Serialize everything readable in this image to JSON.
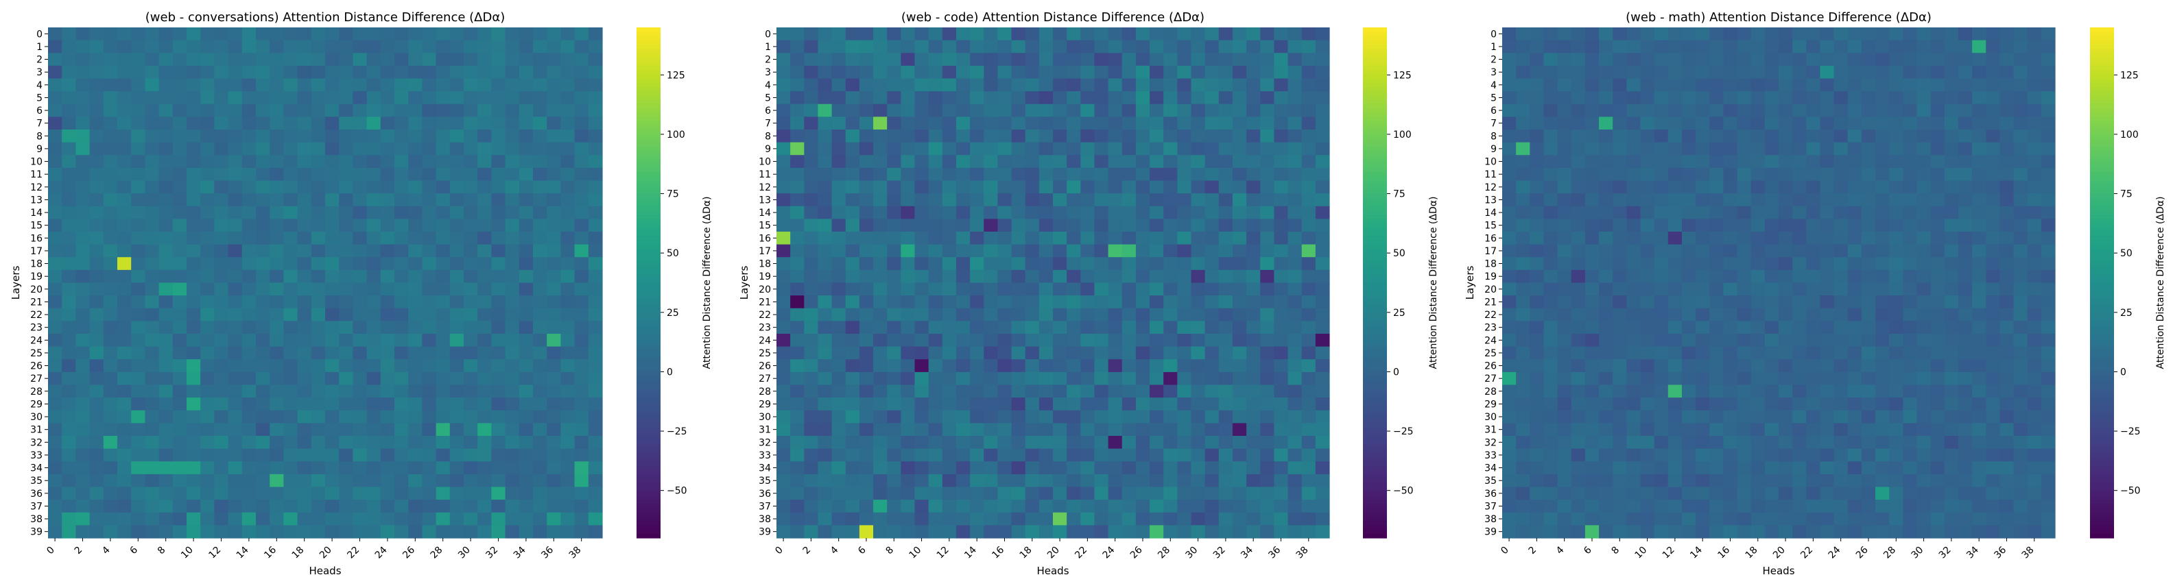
{
  "chart_data": [
    {
      "type": "heatmap",
      "title": "(web - conversations) Attention Distance Difference (ΔDα)",
      "xlabel": "Heads",
      "ylabel": "Layers",
      "rows": 40,
      "cols": 40,
      "x_tick_labels": [
        "0",
        "2",
        "4",
        "6",
        "8",
        "10",
        "12",
        "14",
        "16",
        "18",
        "20",
        "22",
        "24",
        "26",
        "28",
        "30",
        "32",
        "34",
        "36",
        "38"
      ],
      "y_tick_labels": [
        "0",
        "1",
        "2",
        "3",
        "4",
        "5",
        "6",
        "7",
        "8",
        "9",
        "10",
        "11",
        "12",
        "13",
        "14",
        "15",
        "16",
        "17",
        "18",
        "19",
        "20",
        "21",
        "22",
        "23",
        "24",
        "25",
        "26",
        "27",
        "28",
        "29",
        "30",
        "31",
        "32",
        "33",
        "34",
        "35",
        "36",
        "37",
        "38",
        "39"
      ],
      "colorbar": {
        "label": "Attention Distance Difference (ΔDα)",
        "ticks": [
          "125",
          "100",
          "75",
          "50",
          "25",
          "0",
          "−25",
          "−50"
        ],
        "range": [
          -70,
          145
        ],
        "colormap": "viridis"
      },
      "base_value": 10,
      "variation": 12,
      "notable_cells": [
        {
          "row": 18,
          "col": 5,
          "value": 128
        },
        {
          "row": 38,
          "col": 1,
          "value": 48
        },
        {
          "row": 38,
          "col": 2,
          "value": 52
        },
        {
          "row": 38,
          "col": 10,
          "value": 45
        },
        {
          "row": 38,
          "col": 14,
          "value": 48
        },
        {
          "row": 38,
          "col": 17,
          "value": 46
        },
        {
          "row": 38,
          "col": 28,
          "value": 45
        },
        {
          "row": 38,
          "col": 32,
          "value": 44
        },
        {
          "row": 38,
          "col": 36,
          "value": 46
        },
        {
          "row": 38,
          "col": 39,
          "value": 42
        },
        {
          "row": 39,
          "col": 1,
          "value": 48
        },
        {
          "row": 39,
          "col": 10,
          "value": 42
        },
        {
          "row": 39,
          "col": 32,
          "value": 46
        },
        {
          "row": 34,
          "col": 6,
          "value": 52
        },
        {
          "row": 34,
          "col": 7,
          "value": 52
        },
        {
          "row": 34,
          "col": 8,
          "value": 52
        },
        {
          "row": 34,
          "col": 9,
          "value": 52
        },
        {
          "row": 34,
          "col": 10,
          "value": 52
        },
        {
          "row": 34,
          "col": 38,
          "value": 62
        },
        {
          "row": 35,
          "col": 16,
          "value": 70
        },
        {
          "row": 35,
          "col": 38,
          "value": 60
        },
        {
          "row": 32,
          "col": 4,
          "value": 60
        },
        {
          "row": 31,
          "col": 28,
          "value": 65
        },
        {
          "row": 31,
          "col": 31,
          "value": 60
        },
        {
          "row": 30,
          "col": 6,
          "value": 55
        },
        {
          "row": 29,
          "col": 10,
          "value": 60
        },
        {
          "row": 26,
          "col": 10,
          "value": 55
        },
        {
          "row": 27,
          "col": 10,
          "value": 52
        },
        {
          "row": 24,
          "col": 36,
          "value": 70
        },
        {
          "row": 24,
          "col": 29,
          "value": 48
        },
        {
          "row": 8,
          "col": 1,
          "value": 48
        },
        {
          "row": 8,
          "col": 2,
          "value": 45
        },
        {
          "row": 9,
          "col": 2,
          "value": 45
        },
        {
          "row": 7,
          "col": 23,
          "value": 48
        },
        {
          "row": 17,
          "col": 38,
          "value": 55
        },
        {
          "row": 20,
          "col": 8,
          "value": 50
        },
        {
          "row": 20,
          "col": 9,
          "value": 55
        },
        {
          "row": 36,
          "col": 32,
          "value": 60
        },
        {
          "row": 36,
          "col": 28,
          "value": 45
        },
        {
          "row": 7,
          "col": 0,
          "value": -20
        },
        {
          "row": 3,
          "col": 0,
          "value": -15
        },
        {
          "row": 17,
          "col": 13,
          "value": -15
        }
      ]
    },
    {
      "type": "heatmap",
      "title": "(web - code) Attention Distance Difference (ΔDα)",
      "xlabel": "Heads",
      "ylabel": "Layers",
      "rows": 40,
      "cols": 40,
      "x_tick_labels": [
        "0",
        "2",
        "4",
        "6",
        "8",
        "10",
        "12",
        "14",
        "16",
        "18",
        "20",
        "22",
        "24",
        "26",
        "28",
        "30",
        "32",
        "34",
        "36",
        "38"
      ],
      "y_tick_labels": [
        "0",
        "1",
        "2",
        "3",
        "4",
        "5",
        "6",
        "7",
        "8",
        "9",
        "10",
        "11",
        "12",
        "13",
        "14",
        "15",
        "16",
        "17",
        "18",
        "19",
        "20",
        "21",
        "22",
        "23",
        "24",
        "25",
        "26",
        "27",
        "28",
        "29",
        "30",
        "31",
        "32",
        "33",
        "34",
        "35",
        "36",
        "37",
        "38",
        "39"
      ],
      "colorbar": {
        "label": "Attention Distance Difference (ΔDα)",
        "ticks": [
          "125",
          "100",
          "75",
          "50",
          "25",
          "0",
          "−25",
          "−50"
        ],
        "range": [
          -70,
          145
        ],
        "colormap": "viridis"
      },
      "base_value": 5,
      "variation": 20,
      "notable_cells": [
        {
          "row": 39,
          "col": 6,
          "value": 130
        },
        {
          "row": 16,
          "col": 0,
          "value": 110
        },
        {
          "row": 7,
          "col": 7,
          "value": 100
        },
        {
          "row": 9,
          "col": 1,
          "value": 95
        },
        {
          "row": 38,
          "col": 20,
          "value": 95
        },
        {
          "row": 39,
          "col": 27,
          "value": 80
        },
        {
          "row": 6,
          "col": 3,
          "value": 70
        },
        {
          "row": 17,
          "col": 24,
          "value": 80
        },
        {
          "row": 17,
          "col": 25,
          "value": 75
        },
        {
          "row": 17,
          "col": 38,
          "value": 85
        },
        {
          "row": 17,
          "col": 9,
          "value": 60
        },
        {
          "row": 37,
          "col": 7,
          "value": 55
        },
        {
          "row": 21,
          "col": 1,
          "value": -65
        },
        {
          "row": 26,
          "col": 10,
          "value": -60
        },
        {
          "row": 24,
          "col": 39,
          "value": -58
        },
        {
          "row": 27,
          "col": 28,
          "value": -55
        },
        {
          "row": 31,
          "col": 33,
          "value": -55
        },
        {
          "row": 32,
          "col": 24,
          "value": -55
        },
        {
          "row": 24,
          "col": 0,
          "value": -50
        },
        {
          "row": 17,
          "col": 0,
          "value": -45
        },
        {
          "row": 15,
          "col": 15,
          "value": -45
        },
        {
          "row": 19,
          "col": 35,
          "value": -40
        },
        {
          "row": 26,
          "col": 24,
          "value": -40
        },
        {
          "row": 28,
          "col": 27,
          "value": -40
        },
        {
          "row": 14,
          "col": 9,
          "value": -35
        },
        {
          "row": 19,
          "col": 30,
          "value": -35
        }
      ]
    },
    {
      "type": "heatmap",
      "title": "(web - math) Attention Distance Difference (ΔDα)",
      "xlabel": "Heads",
      "ylabel": "Layers",
      "rows": 40,
      "cols": 40,
      "x_tick_labels": [
        "0",
        "2",
        "4",
        "6",
        "8",
        "10",
        "12",
        "14",
        "16",
        "18",
        "20",
        "22",
        "24",
        "26",
        "28",
        "30",
        "32",
        "34",
        "36",
        "38"
      ],
      "y_tick_labels": [
        "0",
        "1",
        "2",
        "3",
        "4",
        "5",
        "6",
        "7",
        "8",
        "9",
        "10",
        "11",
        "12",
        "13",
        "14",
        "15",
        "16",
        "17",
        "18",
        "19",
        "20",
        "21",
        "22",
        "23",
        "24",
        "25",
        "26",
        "27",
        "28",
        "29",
        "30",
        "31",
        "32",
        "33",
        "34",
        "35",
        "36",
        "37",
        "38",
        "39"
      ],
      "colorbar": {
        "label": "Attention Distance Difference (ΔDα)",
        "ticks": [
          "125",
          "100",
          "75",
          "50",
          "25",
          "0",
          "−25",
          "−50"
        ],
        "range": [
          -70,
          145
        ],
        "colormap": "viridis"
      },
      "base_value": 0,
      "variation": 9,
      "notable_cells": [
        {
          "row": 1,
          "col": 34,
          "value": 65
        },
        {
          "row": 9,
          "col": 1,
          "value": 75
        },
        {
          "row": 7,
          "col": 7,
          "value": 65
        },
        {
          "row": 28,
          "col": 12,
          "value": 75
        },
        {
          "row": 39,
          "col": 6,
          "value": 80
        },
        {
          "row": 27,
          "col": 0,
          "value": 60
        },
        {
          "row": 36,
          "col": 27,
          "value": 50
        },
        {
          "row": 3,
          "col": 23,
          "value": 35
        },
        {
          "row": 16,
          "col": 12,
          "value": -35
        },
        {
          "row": 19,
          "col": 5,
          "value": -30
        },
        {
          "row": 14,
          "col": 9,
          "value": -20
        },
        {
          "row": 24,
          "col": 6,
          "value": -20
        }
      ]
    }
  ]
}
